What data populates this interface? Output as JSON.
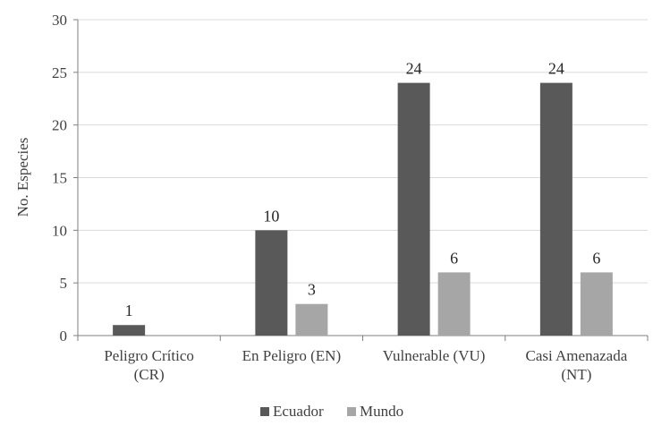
{
  "chart_data": {
    "type": "bar",
    "title": "",
    "xlabel": "",
    "ylabel": "No. Especies",
    "ylim": [
      0,
      30
    ],
    "yticks": [
      "0",
      "5",
      "10",
      "15",
      "20",
      "25",
      "30"
    ],
    "grid": true,
    "legend_position": "bottom",
    "categories": [
      [
        "Peligro Crítico",
        "(CR)"
      ],
      [
        "En Peligro (EN)"
      ],
      [
        "Vulnerable (VU)"
      ],
      [
        "Casi Amenazada",
        "(NT)"
      ]
    ],
    "series": [
      {
        "name": "Ecuador",
        "color": "#595959",
        "values": [
          1,
          10,
          24,
          24
        ]
      },
      {
        "name": "Mundo",
        "color": "#a6a6a6",
        "values": [
          null,
          3,
          6,
          6
        ]
      }
    ]
  }
}
